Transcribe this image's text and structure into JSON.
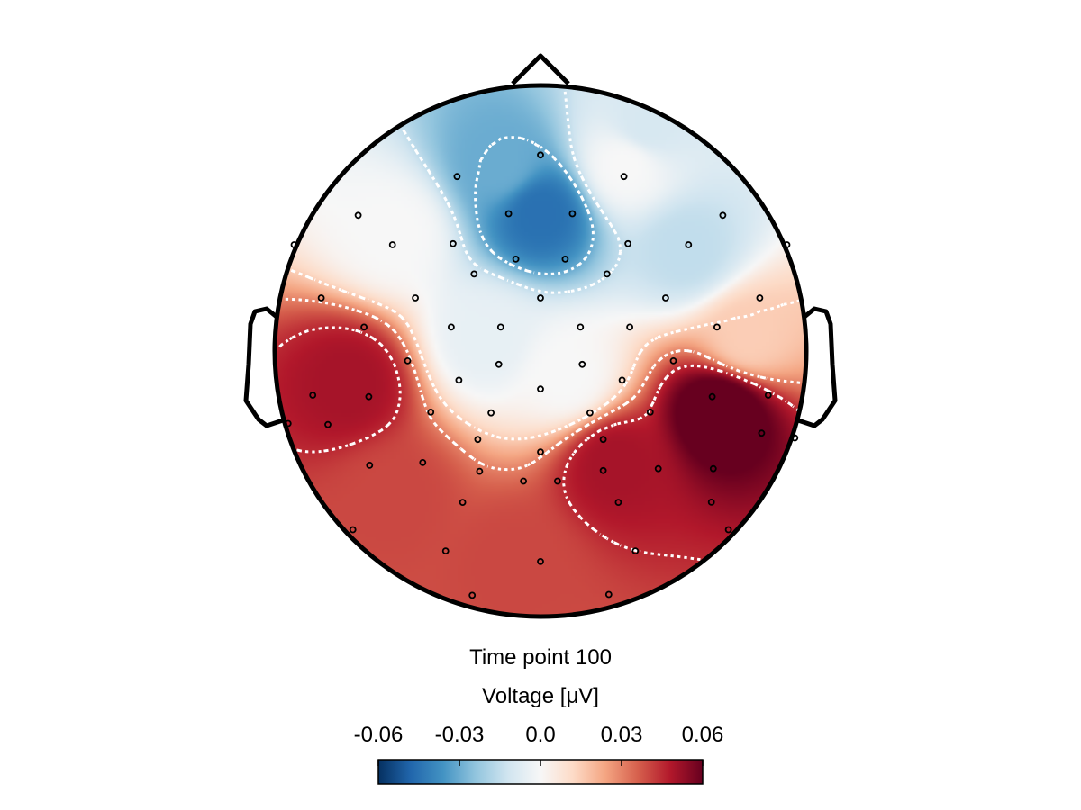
{
  "chart_data": {
    "type": "heatmap",
    "title": "Time point 100",
    "colorbar": {
      "label": "Voltage [μV]",
      "ticks": [
        -0.06,
        -0.03,
        0.0,
        0.03,
        0.06
      ],
      "tick_labels": [
        "-0.06",
        "-0.03",
        "0.0",
        "0.03",
        "0.06"
      ],
      "range": [
        -0.06,
        0.06
      ],
      "colormap": "RdBu_r",
      "colors": [
        "#053061",
        "#2166ac",
        "#4393c3",
        "#92c5de",
        "#d1e5f0",
        "#f7f7f7",
        "#fddbc7",
        "#f4a582",
        "#d6604d",
        "#b2182b",
        "#67001f"
      ]
    },
    "contour_levels": [
      -0.03,
      -0.015,
      0.015,
      0.03,
      0.045
    ],
    "contour_color": "#ffffff",
    "head_outline_color": "#000000",
    "sources": [
      {
        "x": 0.0,
        "y": 0.52,
        "value": -0.045
      },
      {
        "x": -0.15,
        "y": 0.7,
        "value": -0.03
      },
      {
        "x": 0.32,
        "y": 0.7,
        "value": 0.0
      },
      {
        "x": -0.55,
        "y": 0.45,
        "value": 0.0
      },
      {
        "x": 0.55,
        "y": 0.38,
        "value": -0.015
      },
      {
        "x": -0.72,
        "y": -0.12,
        "value": 0.05
      },
      {
        "x": -0.55,
        "y": -0.55,
        "value": 0.04
      },
      {
        "x": -0.1,
        "y": -0.8,
        "value": 0.04
      },
      {
        "x": 0.68,
        "y": -0.22,
        "value": 0.065
      },
      {
        "x": 0.28,
        "y": -0.42,
        "value": 0.05
      },
      {
        "x": 0.78,
        "y": 0.05,
        "value": 0.015
      },
      {
        "x": -0.2,
        "y": 0.05,
        "value": -0.005
      },
      {
        "x": 0.1,
        "y": -0.1,
        "value": 0.0
      },
      {
        "x": 0.4,
        "y": 0.85,
        "value": -0.01
      }
    ],
    "electrodes": [
      [
        0.0,
        0.738
      ],
      [
        -0.314,
        0.657
      ],
      [
        0.314,
        0.657
      ],
      [
        -0.686,
        0.511
      ],
      [
        -0.12,
        0.517
      ],
      [
        0.12,
        0.517
      ],
      [
        0.686,
        0.511
      ],
      [
        -0.927,
        0.4
      ],
      [
        -0.557,
        0.4
      ],
      [
        -0.329,
        0.404
      ],
      [
        -0.093,
        0.346
      ],
      [
        0.093,
        0.346
      ],
      [
        0.329,
        0.404
      ],
      [
        0.557,
        0.4
      ],
      [
        0.927,
        0.4
      ],
      [
        -0.25,
        0.29
      ],
      [
        0.25,
        0.29
      ],
      [
        -0.825,
        0.2
      ],
      [
        -0.471,
        0.2
      ],
      [
        0.0,
        0.2
      ],
      [
        0.471,
        0.2
      ],
      [
        0.825,
        0.2
      ],
      [
        -0.664,
        0.09
      ],
      [
        -0.336,
        0.09
      ],
      [
        -0.15,
        0.09
      ],
      [
        0.15,
        0.09
      ],
      [
        0.336,
        0.09
      ],
      [
        0.664,
        0.09
      ],
      [
        -0.5,
        -0.037
      ],
      [
        -0.157,
        -0.05
      ],
      [
        0.157,
        -0.05
      ],
      [
        0.5,
        -0.037
      ],
      [
        -0.307,
        -0.11
      ],
      [
        0.0,
        -0.143
      ],
      [
        0.307,
        -0.11
      ],
      [
        -0.857,
        -0.166
      ],
      [
        -0.646,
        -0.172
      ],
      [
        -0.413,
        -0.23
      ],
      [
        -0.186,
        -0.233
      ],
      [
        0.186,
        -0.233
      ],
      [
        0.413,
        -0.23
      ],
      [
        0.646,
        -0.172
      ],
      [
        0.857,
        -0.166
      ],
      [
        -0.95,
        -0.273
      ],
      [
        -0.8,
        -0.277
      ],
      [
        0.957,
        -0.327
      ],
      [
        0.832,
        -0.309
      ],
      [
        -0.236,
        -0.333
      ],
      [
        0.0,
        -0.38
      ],
      [
        0.236,
        -0.333
      ],
      [
        -0.643,
        -0.43
      ],
      [
        -0.443,
        -0.42
      ],
      [
        -0.229,
        -0.453
      ],
      [
        0.236,
        -0.45
      ],
      [
        0.443,
        -0.443
      ],
      [
        0.65,
        -0.443
      ],
      [
        -0.064,
        -0.49
      ],
      [
        0.064,
        -0.49
      ],
      [
        -0.293,
        -0.57
      ],
      [
        0.293,
        -0.57
      ],
      [
        0.643,
        -0.569
      ],
      [
        -0.706,
        -0.673
      ],
      [
        -0.357,
        -0.753
      ],
      [
        0.357,
        -0.753
      ],
      [
        0.707,
        -0.673
      ],
      [
        0.0,
        -0.793
      ],
      [
        -0.257,
        -0.92
      ],
      [
        0.257,
        -0.917
      ]
    ]
  }
}
